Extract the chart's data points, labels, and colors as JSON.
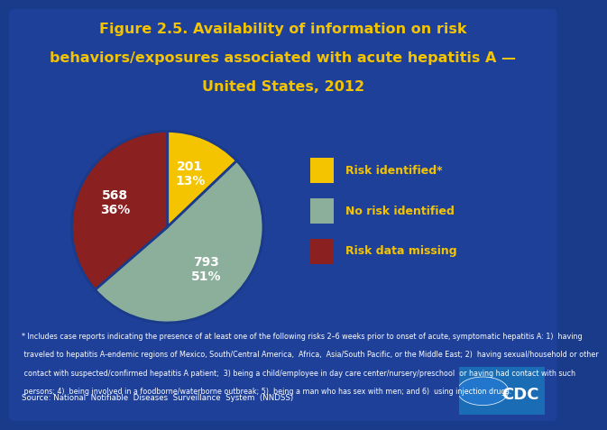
{
  "title_line1": "Figure 2.5. Availability of information on risk",
  "title_line2": "behaviors/exposures associated with acute hepatitis A —",
  "title_line3": "United States, 2012",
  "slices": [
    201,
    793,
    568
  ],
  "slice_labels": [
    "Risk identified*",
    "No risk identified",
    "Risk data missing"
  ],
  "slice_colors": [
    "#F5C400",
    "#8BAF9A",
    "#8B2020"
  ],
  "slice_pct": [
    "13%",
    "51%",
    "36%"
  ],
  "slice_counts": [
    "201",
    "793",
    "568"
  ],
  "background_color": "#1A3A8A",
  "title_color": "#F5C400",
  "legend_label_color": "#F5C400",
  "text_color": "#FFFFFF",
  "footnote_line1": "* Includes case reports indicating the presence of at least one of the following risks 2–6 weeks prior to onset of acute, symptomatic hepatitis A: 1)  having",
  "footnote_line2": " traveled to hepatitis A-endemic regions of Mexico, South/Central America,  Africa,  Asia/South Pacific, or the Middle East; 2)  having sexual/household or other",
  "footnote_line3": " contact with suspected/confirmed hepatitis A patient;  3) being a child/employee in day care center/nursery/preschool  or having had contact with such",
  "footnote_line4": " persons; 4)  being involved in a foodborne/waterborne outbreak; 5)  being a man who has sex with men; and 6)  using injection drugs.",
  "source": "Source: National  Notifiable  Diseases  Surveillance  System  (NNDSS)",
  "startangle": 90,
  "wedge_edge_color": "#1A3A8A",
  "inner_bg": "#1E4099"
}
